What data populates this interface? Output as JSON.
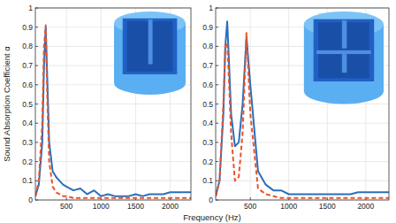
{
  "chart_data": [
    {
      "type": "line",
      "y_label": "Sound Absorption Coefficient α",
      "x_label": "Frequency (Hz)",
      "x": [
        50,
        100,
        150,
        175,
        200,
        225,
        250,
        300,
        350,
        400,
        450,
        500,
        600,
        700,
        800,
        900,
        1000,
        1100,
        1200,
        1300,
        1400,
        1500,
        1600,
        1700,
        1800,
        1900,
        2000,
        2100,
        2200,
        2300
      ],
      "xlim": [
        50,
        2300
      ],
      "xticks": [
        500,
        1000,
        1500,
        2000
      ],
      "ylim": [
        0,
        1
      ],
      "yticks": [
        0,
        0.1,
        0.2,
        0.3,
        0.4,
        0.5,
        0.6,
        0.7,
        0.8,
        0.9,
        1
      ],
      "grid": true,
      "series": [
        {
          "color": "#2a6fbb",
          "line_style": "solid",
          "values": [
            0.02,
            0.08,
            0.3,
            0.7,
            0.9,
            0.6,
            0.3,
            0.15,
            0.12,
            0.1,
            0.08,
            0.07,
            0.05,
            0.06,
            0.03,
            0.05,
            0.02,
            0.03,
            0.02,
            0.02,
            0.02,
            0.03,
            0.02,
            0.03,
            0.03,
            0.03,
            0.04,
            0.04,
            0.04,
            0.04
          ]
        },
        {
          "color": "#e8542a",
          "line_style": "dashed",
          "values": [
            0.02,
            0.1,
            0.4,
            0.8,
            0.91,
            0.5,
            0.2,
            0.07,
            0.04,
            0.03,
            0.02,
            0.02,
            0.01,
            0.01,
            0.01,
            0.01,
            0.01,
            0.01,
            0.01,
            0.01,
            0.01,
            0.01,
            0.01,
            0.01,
            0.01,
            0.01,
            0.01,
            0.01,
            0.01,
            0.01
          ]
        }
      ]
    },
    {
      "type": "line",
      "x": [
        50,
        100,
        150,
        175,
        200,
        225,
        250,
        300,
        350,
        400,
        450,
        500,
        600,
        700,
        800,
        900,
        1000,
        1100,
        1200,
        1300,
        1400,
        1500,
        1600,
        1700,
        1800,
        1900,
        2000,
        2100,
        2200,
        2300
      ],
      "xlim": [
        50,
        2300
      ],
      "xticks": [
        500,
        1000,
        1500,
        2000
      ],
      "ylim": [
        0,
        1
      ],
      "yticks": [
        0,
        0.1,
        0.2,
        0.3,
        0.4,
        0.5,
        0.6,
        0.7,
        0.8,
        0.9,
        1
      ],
      "grid": true,
      "series": [
        {
          "color": "#2a6fbb",
          "line_style": "solid",
          "values": [
            0.02,
            0.1,
            0.45,
            0.8,
            0.93,
            0.7,
            0.45,
            0.28,
            0.3,
            0.5,
            0.85,
            0.6,
            0.15,
            0.08,
            0.05,
            0.05,
            0.03,
            0.03,
            0.03,
            0.03,
            0.03,
            0.03,
            0.03,
            0.03,
            0.03,
            0.04,
            0.04,
            0.04,
            0.04,
            0.04
          ]
        },
        {
          "color": "#e8542a",
          "line_style": "dashed",
          "values": [
            0.02,
            0.1,
            0.5,
            0.8,
            0.82,
            0.6,
            0.35,
            0.1,
            0.12,
            0.35,
            0.87,
            0.45,
            0.06,
            0.03,
            0.02,
            0.01,
            0.01,
            0.01,
            0.01,
            0.01,
            0.01,
            0.01,
            0.01,
            0.01,
            0.01,
            0.01,
            0.01,
            0.01,
            0.01,
            0.01
          ]
        }
      ]
    }
  ]
}
